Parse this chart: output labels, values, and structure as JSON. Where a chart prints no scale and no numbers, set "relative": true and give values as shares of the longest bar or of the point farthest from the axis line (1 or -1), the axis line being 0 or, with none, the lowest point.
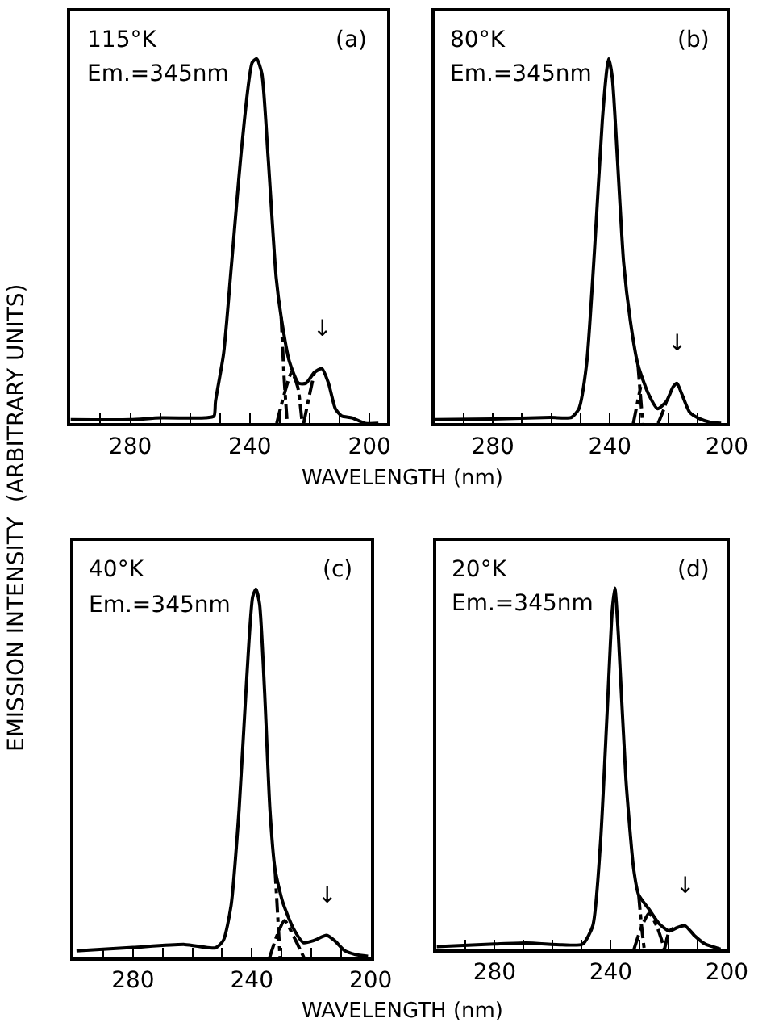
{
  "chart_data": [
    {
      "type": "line",
      "title": "(a)",
      "annotations": [
        "115°K",
        "Em.=345nm",
        {
          "text": "↓",
          "x": 215.9,
          "y": 0.15
        }
      ],
      "xlabel": "WAVELENGTH (nm)",
      "ylabel": "EMISSION INTENSITY  (ARBITRARY UNITS)",
      "relative": true,
      "tick_labels": "x",
      "xlim": [
        300,
        194
      ],
      "xticks": [
        {
          "value": 290,
          "label": null
        },
        280,
        {
          "value": 270,
          "label": null
        },
        {
          "value": 260,
          "label": null
        },
        {
          "value": 250,
          "label": null
        },
        240,
        {
          "value": 230,
          "label": null
        },
        {
          "value": 220,
          "label": null
        },
        {
          "value": 210,
          "label": null
        },
        200
      ],
      "series": [
        {
          "color": "#000000",
          "x": [
            300,
            280,
            270,
            255,
            252,
            251.5,
            248.8,
            246.2,
            242.7,
            239.2,
            237.7,
            236,
            233.9,
            231.2,
            229.5,
            226.8,
            223.7,
            221.2,
            218.4,
            215.9,
            213.7,
            211.4,
            209.3,
            205.8,
            201.4,
            197
          ],
          "values": [
            0.01,
            0.01,
            0.015,
            0.015,
            0.02,
            0.06,
            0.19,
            0.43,
            0.76,
            0.99,
            1.0,
            0.96,
            0.73,
            0.4,
            0.29,
            0.17,
            0.11,
            0.11,
            0.14,
            0.15,
            0.11,
            0.04,
            0.02,
            0.015,
            0.0,
            0.0
          ]
        },
        {
          "color": "#000000",
          "line_style": "dashed",
          "x": [
            229.5,
            228.5,
            227.5
          ],
          "values": [
            0.29,
            0.12,
            0.0
          ]
        },
        {
          "color": "#000000",
          "line_style": "dashed",
          "x": [
            231,
            228.5,
            226,
            224,
            222.5
          ],
          "values": [
            0.0,
            0.08,
            0.14,
            0.1,
            0.0
          ]
        },
        {
          "color": "#000000",
          "line_style": "dashed",
          "x": [
            222,
            220,
            218.4
          ],
          "values": [
            0.0,
            0.08,
            0.14
          ]
        }
      ]
    },
    {
      "type": "line",
      "title": "(b)",
      "annotations": [
        "80°K",
        "Em.=345nm",
        {
          "text": "↓",
          "x": 217.1,
          "y": 0.11
        }
      ],
      "relative": true,
      "tick_labels": "x",
      "xlim": [
        300,
        200
      ],
      "xticks": [
        {
          "value": 290,
          "label": null
        },
        280,
        {
          "value": 270,
          "label": null
        },
        {
          "value": 260,
          "label": null
        },
        {
          "value": 250,
          "label": null
        },
        240,
        {
          "value": 230,
          "label": null
        },
        {
          "value": 220,
          "label": null
        },
        {
          "value": 210,
          "label": null
        },
        200
      ],
      "series": [
        {
          "color": "#000000",
          "x": [
            300,
            280,
            260.3,
            253.2,
            250.6,
            248,
            245.3,
            242.6,
            240.9,
            240.4,
            239.2,
            237.4,
            235.3,
            233,
            230.4,
            226.8,
            223.7,
            220.7,
            218.4,
            217.1,
            215.4,
            212.7,
            209.2,
            205.7,
            202
          ],
          "values": [
            0.01,
            0.012,
            0.016,
            0.016,
            0.04,
            0.16,
            0.47,
            0.83,
            0.98,
            1.0,
            0.95,
            0.72,
            0.44,
            0.28,
            0.16,
            0.08,
            0.04,
            0.06,
            0.1,
            0.11,
            0.08,
            0.03,
            0.012,
            0.003,
            0.0
          ]
        },
        {
          "color": "#000000",
          "line_style": "dashed",
          "x": [
            230.4,
            229.5,
            228.8
          ],
          "values": [
            0.16,
            0.07,
            0.0
          ]
        },
        {
          "color": "#000000",
          "line_style": "dashed",
          "x": [
            232,
            230.5,
            229.5
          ],
          "values": [
            0.0,
            0.06,
            0.1
          ]
        },
        {
          "color": "#000000",
          "line_style": "dashed",
          "x": [
            223.5,
            221.5,
            220.7
          ],
          "values": [
            0.0,
            0.04,
            0.06
          ]
        }
      ]
    },
    {
      "type": "line",
      "title": "(c)",
      "annotations": [
        "40°K",
        "Em.=345nm",
        {
          "text": "↓",
          "x": 214.8,
          "y": 0.06
        }
      ],
      "xlabel": "WAVELENGTH (nm)",
      "relative": true,
      "tick_labels": "x",
      "xlim": [
        300,
        200
      ],
      "xticks": [
        {
          "value": 290,
          "label": null
        },
        280,
        {
          "value": 270,
          "label": null
        },
        {
          "value": 260,
          "label": null
        },
        {
          "value": 250,
          "label": null
        },
        240,
        {
          "value": 230,
          "label": null
        },
        {
          "value": 220,
          "label": null
        },
        {
          "value": 210,
          "label": null
        },
        200
      ],
      "series": [
        {
          "color": "#000000",
          "x": [
            299,
            280,
            262.6,
            252.2,
            249.6,
            247,
            244.3,
            241.7,
            239.7,
            238.6,
            237.4,
            235.7,
            233.9,
            232.2,
            229.6,
            226.1,
            222.6,
            219.1,
            214.8,
            212.2,
            208.7,
            205.2,
            200.9
          ],
          "values": [
            0.018,
            0.027,
            0.035,
            0.026,
            0.046,
            0.14,
            0.4,
            0.76,
            0.98,
            1.0,
            0.96,
            0.72,
            0.4,
            0.24,
            0.15,
            0.08,
            0.04,
            0.046,
            0.06,
            0.046,
            0.018,
            0.008,
            0.003
          ]
        },
        {
          "color": "#000000",
          "line_style": "dashed",
          "x": [
            232.2,
            231.2,
            230.5
          ],
          "values": [
            0.24,
            0.1,
            0.0
          ]
        },
        {
          "color": "#000000",
          "line_style": "dashed",
          "x": [
            234,
            231.5,
            229,
            225.5,
            222.5
          ],
          "values": [
            0.0,
            0.06,
            0.1,
            0.05,
            0.0
          ]
        }
      ]
    },
    {
      "type": "line",
      "title": "(d)",
      "annotations": [
        "20°K",
        "Em.=345nm",
        {
          "text": "↓",
          "x": 214.5,
          "y": 0.065
        }
      ],
      "relative": true,
      "tick_labels": "x",
      "xlim": [
        300,
        200
      ],
      "xticks": [
        {
          "value": 290,
          "label": null
        },
        280,
        {
          "value": 270,
          "label": null
        },
        {
          "value": 260,
          "label": null
        },
        {
          "value": 250,
          "label": null
        },
        240,
        {
          "value": 230,
          "label": null
        },
        {
          "value": 220,
          "label": null
        },
        {
          "value": 210,
          "label": null
        },
        200
      ],
      "series": [
        {
          "color": "#000000",
          "x": [
            300,
            280,
            269,
            256.8,
            249.7,
            246.2,
            243.6,
            241.3,
            239.5,
            238.6,
            237.4,
            234.8,
            232.1,
            230.4,
            226.8,
            223.3,
            219.8,
            217.1,
            214.5,
            211,
            207.5,
            202.2
          ],
          "values": [
            0.007,
            0.014,
            0.017,
            0.012,
            0.014,
            0.065,
            0.29,
            0.65,
            0.94,
            1.0,
            0.87,
            0.47,
            0.22,
            0.15,
            0.11,
            0.07,
            0.05,
            0.06,
            0.065,
            0.036,
            0.014,
            0.0
          ]
        },
        {
          "color": "#000000",
          "line_style": "dashed",
          "x": [
            230.4,
            229.5,
            228.5
          ],
          "values": [
            0.15,
            0.07,
            0.0
          ]
        },
        {
          "color": "#000000",
          "line_style": "dashed",
          "x": [
            232,
            229.5,
            226.8,
            224,
            221.5
          ],
          "values": [
            0.0,
            0.06,
            0.1,
            0.06,
            0.0
          ]
        },
        {
          "color": "#000000",
          "line_style": "dashed",
          "x": [
            221.5,
            219.8,
            218
          ],
          "values": [
            0.0,
            0.05,
            0.06
          ]
        }
      ]
    }
  ]
}
